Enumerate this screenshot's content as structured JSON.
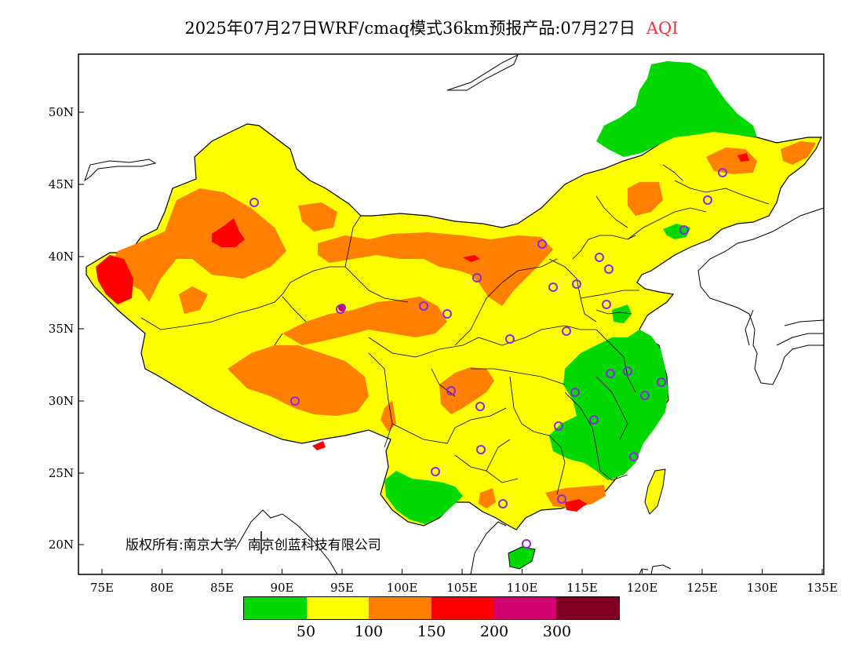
{
  "title": {
    "main": "2025年07月27日WRF/cmaq模式36km预报产品:07月27日",
    "variable": "AQI"
  },
  "axes": {
    "lat_labels": [
      "50N",
      "45N",
      "40N",
      "35N",
      "30N",
      "25N",
      "20N"
    ],
    "lon_labels": [
      "75E",
      "80E",
      "85E",
      "90E",
      "95E",
      "100E",
      "105E",
      "110E",
      "115E",
      "120E",
      "125E",
      "130E",
      "135E"
    ]
  },
  "copyright": {
    "part1": "版权所有:南京大学",
    "part2": "南京创蓝科技有限公司"
  },
  "legend": {
    "colors": [
      "#00d800",
      "#ffff00",
      "#ff7f00",
      "#ff0000",
      "#d2006e",
      "#7f0023"
    ],
    "labels": [
      "50",
      "100",
      "150",
      "200",
      "300"
    ]
  },
  "colors": {
    "good": "#00d800",
    "moderate": "#ffff00",
    "usg": "#ff7f00",
    "unhealthy": "#ff0000",
    "very_unhealthy": "#d2006e",
    "station_marker": "#8a2be2",
    "title_variable": "#e8323c"
  }
}
